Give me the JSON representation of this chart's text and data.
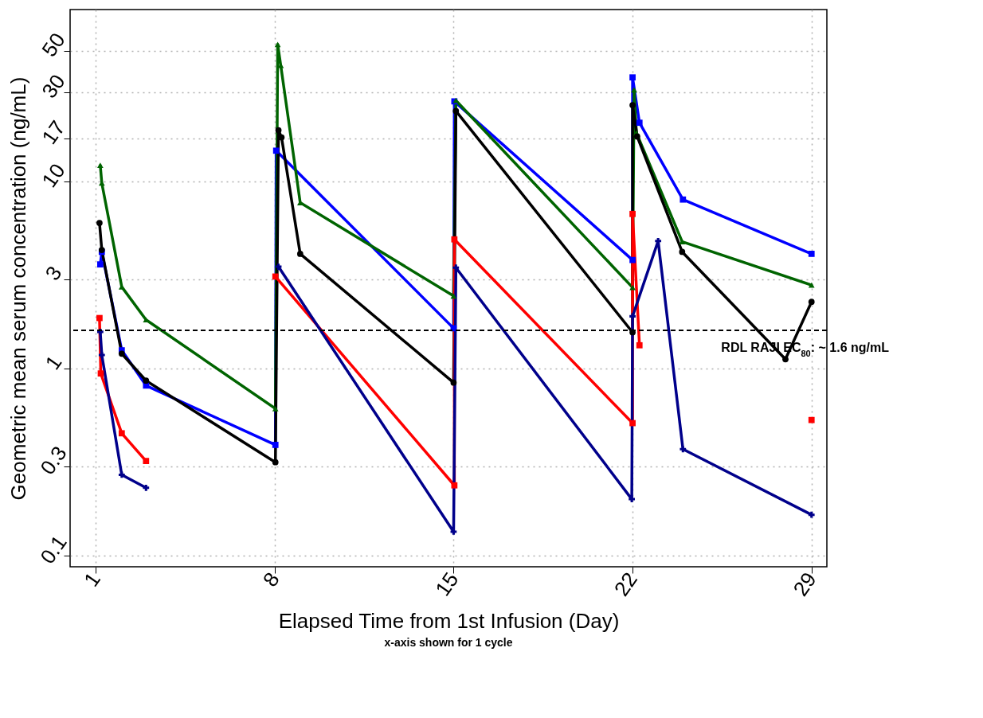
{
  "chart_data": {
    "type": "line",
    "xlabel": "Elapsed Time from 1st Infusion (Day)",
    "ylabel": "Geometric mean serum concentration (ng/mL)",
    "annotations": [
      "x-axis shown for 1 cycle"
    ],
    "log": "y",
    "grid": true,
    "xlim": [
      0,
      29.6
    ],
    "xticks": [
      1,
      8,
      15,
      22,
      29
    ],
    "ylim": [
      0.087,
      83
    ],
    "yticks": [
      0.1,
      0.3,
      1,
      3,
      10,
      17,
      30,
      50
    ],
    "ref_lines": [
      {
        "axis": "y",
        "value": 1.6,
        "label": "RDL RAJI  EC$_{80}$: ~ 1.6 ng/mL",
        "color": "#000000",
        "line_style": "dashed"
      }
    ],
    "series": [
      {
        "color": "#0000ff",
        "marker": "square",
        "x": [
          1.18,
          1.24,
          2.02,
          2.97,
          8.03,
          8.06,
          15.0,
          15.03,
          22.0,
          22.0,
          22.27,
          23.97,
          29
        ],
        "values": [
          3.6,
          4.2,
          1.25,
          0.81,
          0.39,
          14.6,
          1.64,
          26.8,
          3.8,
          36,
          20.6,
          8.0,
          4.1
        ]
      },
      {
        "color": "#006400",
        "marker": "triangle",
        "x": [
          1.18,
          1.24,
          2.02,
          2.97,
          8.03,
          8.12,
          8.24,
          9.0,
          15.0,
          15.09,
          22.0,
          22.06,
          22.15,
          23.94,
          29
        ],
        "values": [
          12.2,
          9.8,
          2.73,
          1.82,
          0.61,
          54,
          41.7,
          7.7,
          2.44,
          27.1,
          2.71,
          30.9,
          18.2,
          4.76,
          2.79
        ]
      },
      {
        "color": "#000000",
        "marker": "circle",
        "x": [
          1.15,
          1.24,
          2.02,
          2.97,
          8.03,
          8.15,
          8.27,
          9.0,
          15.0,
          15.09,
          22.0,
          22.0,
          22.18,
          23.94,
          27.98,
          29
        ],
        "values": [
          6.0,
          4.3,
          1.2,
          0.86,
          0.315,
          18.8,
          17.2,
          4.1,
          0.84,
          23.8,
          1.56,
          25.6,
          17.4,
          4.2,
          1.12,
          2.27
        ]
      },
      {
        "color": "#ff0000",
        "marker": "square",
        "x": [
          1.15,
          1.2,
          2.02,
          2.97,
          5.5,
          8.03,
          15.03,
          15.03,
          22.0,
          22.0,
          22.27,
          25.5,
          29
        ],
        "values": [
          1.86,
          0.94,
          0.45,
          0.32,
          null,
          3.1,
          0.237,
          4.9,
          0.51,
          6.7,
          1.33,
          null,
          0.53
        ]
      },
      {
        "color": "#00008b",
        "marker": "cross",
        "x": [
          1.18,
          1.24,
          2.02,
          2.97,
          5.5,
          8.15,
          15.0,
          15.09,
          21.97,
          22.0,
          23.0,
          23.97,
          29
        ],
        "values": [
          1.57,
          1.18,
          0.27,
          0.23,
          null,
          3.5,
          0.134,
          3.46,
          0.2,
          1.9,
          4.8,
          0.37,
          0.165
        ]
      }
    ]
  }
}
